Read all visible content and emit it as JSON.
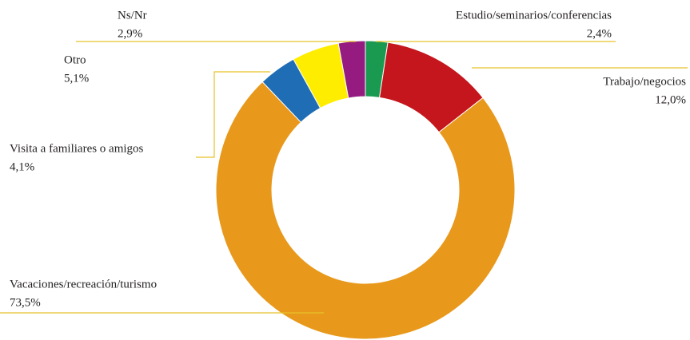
{
  "chart_data": {
    "type": "donut",
    "categories": [
      "Estudio/seminarios/conferencias",
      "Trabajo/negocios",
      "Vacaciones/recreación/turismo",
      "Visita a familiares o amigos",
      "Otro",
      "Ns/Nr"
    ],
    "values": [
      2.4,
      12.0,
      73.5,
      4.1,
      5.1,
      2.9
    ],
    "value_labels": [
      "2,4%",
      "12,0%",
      "73,5%",
      "4,1%",
      "5,1%",
      "2,9%"
    ],
    "colors": [
      "#1a9a50",
      "#c4161c",
      "#e8991c",
      "#1f6db5",
      "#ffed00",
      "#951b81"
    ]
  }
}
